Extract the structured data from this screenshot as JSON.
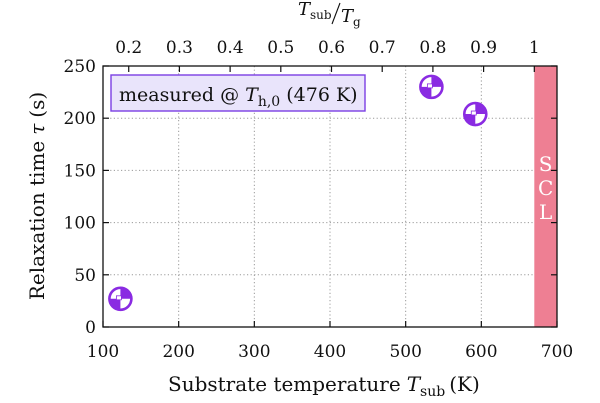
{
  "chart_data": {
    "type": "scatter",
    "x_axis": {
      "label_text": "Substrate temperature",
      "label_symbol": "T",
      "label_subscript": "sub",
      "label_unit": "(K)",
      "range": [
        100,
        700
      ],
      "ticks": [
        100,
        200,
        300,
        400,
        500,
        600,
        700
      ],
      "tick_labels": [
        "100",
        "200",
        "300",
        "400",
        "500",
        "600",
        "700"
      ]
    },
    "top_axis": {
      "label_num_symbol": "T",
      "label_num_sub": "sub",
      "label_den_symbol": "T",
      "label_den_sub": "g",
      "ticks": [
        0.2,
        0.3,
        0.4,
        0.5,
        0.6,
        0.7,
        0.8,
        0.9,
        1.0
      ],
      "tick_labels": [
        "0.2",
        "0.3",
        "0.4",
        "0.5",
        "0.6",
        "0.7",
        "0.8",
        "0.9",
        "1"
      ],
      "tg_kelvin": 670
    },
    "y_axis": {
      "label_text": "Relaxation time",
      "label_symbol": "τ",
      "label_unit": "(s)",
      "range": [
        0,
        250
      ],
      "ticks": [
        0,
        50,
        100,
        150,
        200,
        250
      ],
      "tick_labels": [
        "0",
        "50",
        "100",
        "150",
        "200",
        "250"
      ]
    },
    "grid": true,
    "points": [
      {
        "x": 123,
        "y": 27
      },
      {
        "x": 534,
        "y": 230
      },
      {
        "x": 592,
        "y": 204
      }
    ],
    "marker_color": "#8a2be2",
    "annotation": {
      "prefix": "measured @ ",
      "symbol": "T",
      "subscript": "h,0",
      "value": " (476 K)",
      "box_fill": "#e9e4fb",
      "box_stroke": "#7b3fe4"
    },
    "scl_band": {
      "x_start": 670,
      "x_end": 700,
      "letters": [
        "S",
        "C",
        "L"
      ],
      "color": "#ee7f93"
    }
  }
}
